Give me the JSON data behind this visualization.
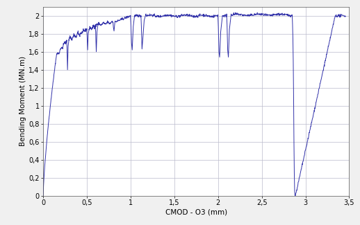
{
  "xlabel": "CMOD - O3 (mm)",
  "ylabel": "Bending Moment (MN.m)",
  "xlim": [
    0,
    3.5
  ],
  "ylim": [
    0,
    2.1
  ],
  "xticks": [
    0,
    0.5,
    1,
    1.5,
    2,
    2.5,
    3,
    3.5
  ],
  "yticks": [
    0,
    0.2,
    0.4,
    0.6,
    0.8,
    1.0,
    1.2,
    1.4,
    1.6,
    1.8,
    2.0
  ],
  "line_color": "#3333aa",
  "line_width": 0.7,
  "background_color": "#f0f0f0",
  "plot_bg_color": "#ffffff",
  "grid_color": "#bbbbcc",
  "font_size_label": 7.5,
  "font_size_tick": 7.0
}
